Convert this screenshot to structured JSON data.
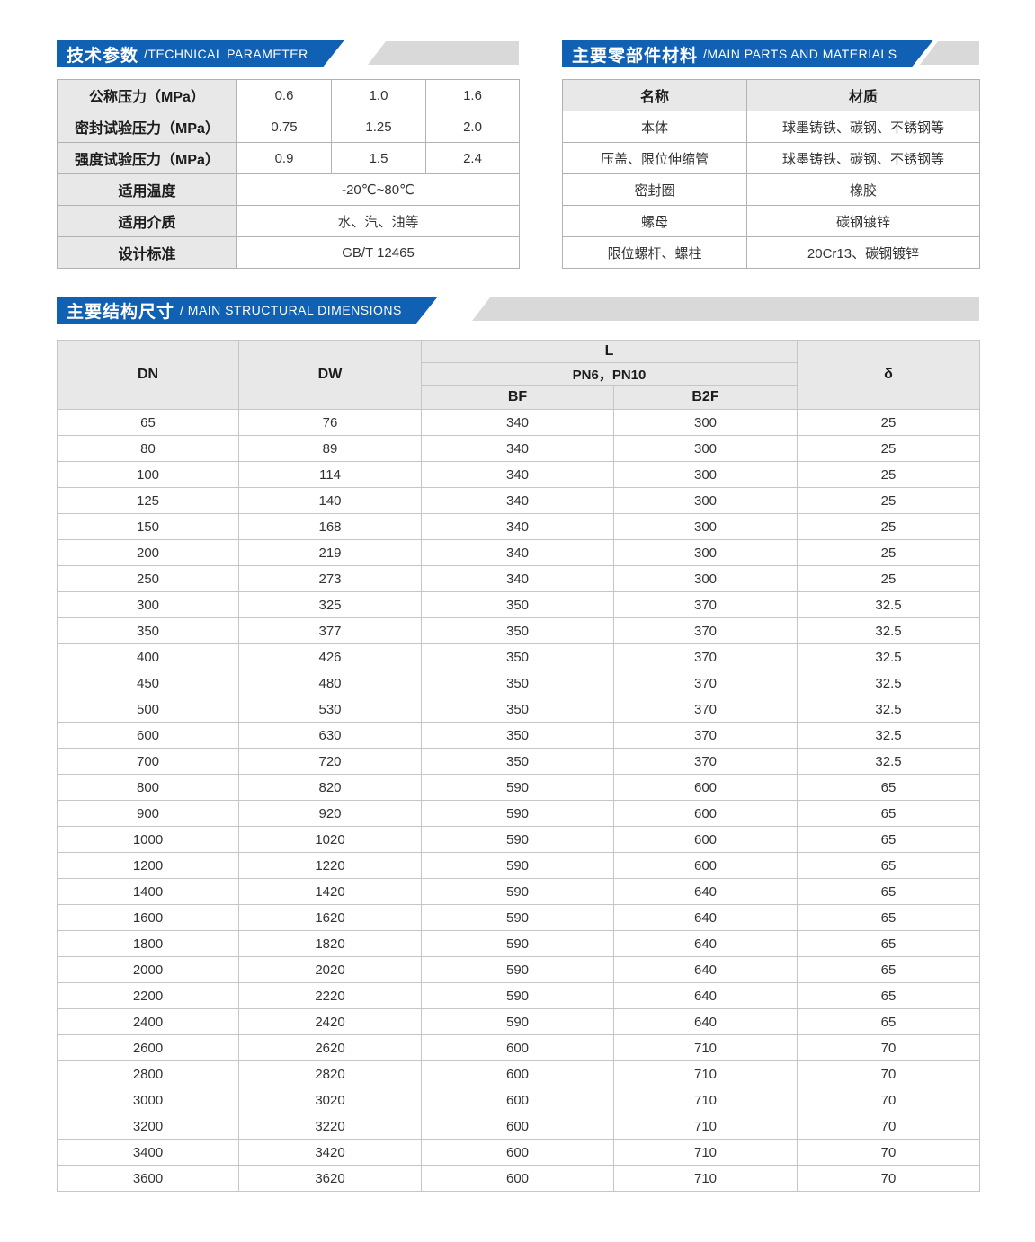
{
  "colors": {
    "banner_blue": "#1061b3",
    "banner_gray": "#d9d9d9",
    "header_cell_bg": "#e8e8e8",
    "border_gray": "#b2b2b2",
    "body_text": "#333333"
  },
  "banners": {
    "technical": {
      "zh": "技术参数",
      "en": "/TECHNICAL PARAMETER"
    },
    "materials": {
      "zh": "主要零部件材料",
      "en": "/MAIN PARTS AND MATERIALS"
    },
    "dimensions": {
      "zh": "主要结构尺寸",
      "en": "/ MAIN STRUCTURAL DIMENSIONS"
    }
  },
  "technical_table": {
    "rows": [
      {
        "label": "公称压力（MPa）",
        "values": [
          "0.6",
          "1.0",
          "1.6"
        ]
      },
      {
        "label": "密封试验压力（MPa）",
        "values": [
          "0.75",
          "1.25",
          "2.0"
        ]
      },
      {
        "label": "强度试验压力（MPa）",
        "values": [
          "0.9",
          "1.5",
          "2.4"
        ]
      },
      {
        "label": "适用温度",
        "span_value": "-20℃~80℃"
      },
      {
        "label": "适用介质",
        "span_value": "水、汽、油等"
      },
      {
        "label": "设计标准",
        "span_value": "GB/T 12465"
      }
    ]
  },
  "materials_table": {
    "headers": {
      "name": "名称",
      "material": "材质"
    },
    "rows": [
      {
        "name": "本体",
        "material": "球墨铸铁、碳钢、不锈钢等"
      },
      {
        "name": "压盖、限位伸缩管",
        "material": "球墨铸铁、碳钢、不锈钢等"
      },
      {
        "name": "密封圈",
        "material": "橡胶"
      },
      {
        "name": "螺母",
        "material": "碳钢镀锌"
      },
      {
        "name": "限位螺杆、螺柱",
        "material": "20Cr13、碳钢镀锌"
      }
    ]
  },
  "dimensions_table": {
    "headers": {
      "dn": "DN",
      "dw": "DW",
      "l": "L",
      "pn": "PN6，PN10",
      "bf": "BF",
      "b2f": "B2F",
      "delta": "δ"
    },
    "rows": [
      [
        "65",
        "76",
        "340",
        "300",
        "25"
      ],
      [
        "80",
        "89",
        "340",
        "300",
        "25"
      ],
      [
        "100",
        "114",
        "340",
        "300",
        "25"
      ],
      [
        "125",
        "140",
        "340",
        "300",
        "25"
      ],
      [
        "150",
        "168",
        "340",
        "300",
        "25"
      ],
      [
        "200",
        "219",
        "340",
        "300",
        "25"
      ],
      [
        "250",
        "273",
        "340",
        "300",
        "25"
      ],
      [
        "300",
        "325",
        "350",
        "370",
        "32.5"
      ],
      [
        "350",
        "377",
        "350",
        "370",
        "32.5"
      ],
      [
        "400",
        "426",
        "350",
        "370",
        "32.5"
      ],
      [
        "450",
        "480",
        "350",
        "370",
        "32.5"
      ],
      [
        "500",
        "530",
        "350",
        "370",
        "32.5"
      ],
      [
        "600",
        "630",
        "350",
        "370",
        "32.5"
      ],
      [
        "700",
        "720",
        "350",
        "370",
        "32.5"
      ],
      [
        "800",
        "820",
        "590",
        "600",
        "65"
      ],
      [
        "900",
        "920",
        "590",
        "600",
        "65"
      ],
      [
        "1000",
        "1020",
        "590",
        "600",
        "65"
      ],
      [
        "1200",
        "1220",
        "590",
        "600",
        "65"
      ],
      [
        "1400",
        "1420",
        "590",
        "640",
        "65"
      ],
      [
        "1600",
        "1620",
        "590",
        "640",
        "65"
      ],
      [
        "1800",
        "1820",
        "590",
        "640",
        "65"
      ],
      [
        "2000",
        "2020",
        "590",
        "640",
        "65"
      ],
      [
        "2200",
        "2220",
        "590",
        "640",
        "65"
      ],
      [
        "2400",
        "2420",
        "590",
        "640",
        "65"
      ],
      [
        "2600",
        "2620",
        "600",
        "710",
        "70"
      ],
      [
        "2800",
        "2820",
        "600",
        "710",
        "70"
      ],
      [
        "3000",
        "3020",
        "600",
        "710",
        "70"
      ],
      [
        "3200",
        "3220",
        "600",
        "710",
        "70"
      ],
      [
        "3400",
        "3420",
        "600",
        "710",
        "70"
      ],
      [
        "3600",
        "3620",
        "600",
        "710",
        "70"
      ]
    ]
  }
}
